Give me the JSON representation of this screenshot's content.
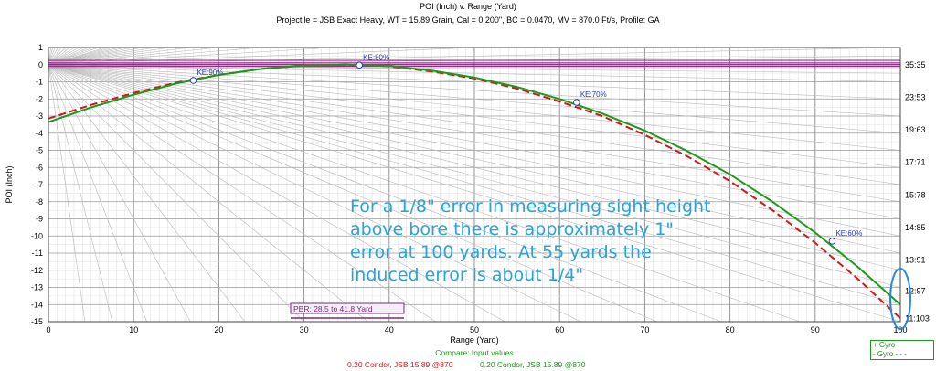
{
  "chart_data": {
    "type": "line",
    "title": "POI (Inch) v. Range (Yard)",
    "subtitle": "Projectile = JSB Exact Heavy, WT = 15.89 Grain, Cal = 0.200\", BC = 0.0470, MV = 870.0 Ft/s, Profile: GA",
    "xlabel": "Range (Yard)",
    "ylabel": "POI (Inch)",
    "xlim": [
      0,
      100
    ],
    "ylim": [
      -15,
      1
    ],
    "xticks": [
      "0",
      "10",
      "20",
      "30",
      "40",
      "50",
      "60",
      "70",
      "80",
      "90",
      "100"
    ],
    "yticks": [
      "1",
      "0",
      "-1",
      "-2",
      "-3",
      "-4",
      "-5",
      "-6",
      "-7",
      "-8",
      "-9",
      "-10",
      "-11",
      "-12",
      "-13",
      "-14",
      "-15"
    ],
    "right_ticks": [
      {
        "label": "35:35",
        "y": 0
      },
      {
        "label": "23:53",
        "y": -1.9
      },
      {
        "label": "19:63",
        "y": -3.8
      },
      {
        "label": "17:71",
        "y": -5.7
      },
      {
        "label": "15:78",
        "y": -7.6
      },
      {
        "label": "14:85",
        "y": -9.5
      },
      {
        "label": "13:91",
        "y": -11.4
      },
      {
        "label": "12:97",
        "y": -13.2
      },
      {
        "label": "11:103",
        "y": -14.8
      }
    ],
    "grid": true,
    "series": [
      {
        "name": "0.20 Condor, JSB 15.89 @870",
        "color": "#cc1a1a",
        "dash": "8,4",
        "x": [
          0,
          5,
          10,
          15,
          20,
          25,
          30,
          35,
          40,
          45,
          50,
          55,
          60,
          65,
          70,
          75,
          80,
          85,
          90,
          95,
          100
        ],
        "y": [
          -3.15,
          -2.35,
          -1.65,
          -1.05,
          -0.6,
          -0.25,
          -0.05,
          0,
          -0.1,
          -0.4,
          -0.8,
          -1.4,
          -2.15,
          -3.0,
          -4.1,
          -5.35,
          -6.8,
          -8.5,
          -10.4,
          -12.5,
          -14.8
        ]
      },
      {
        "name": "0.20 Condor, JSB 15.89 @870",
        "color": "#1a9a1a",
        "dash": "",
        "x": [
          0,
          5,
          10,
          15,
          20,
          25,
          30,
          35,
          40,
          45,
          50,
          55,
          60,
          65,
          70,
          75,
          80,
          85,
          90,
          95,
          100
        ],
        "y": [
          -3.35,
          -2.5,
          -1.75,
          -1.1,
          -0.6,
          -0.25,
          -0.05,
          0,
          -0.08,
          -0.35,
          -0.75,
          -1.3,
          -2.0,
          -2.85,
          -3.85,
          -5.05,
          -6.4,
          -8.0,
          -9.8,
          -11.8,
          -14.0
        ]
      }
    ],
    "ke_markers": [
      {
        "label": "KE:90%",
        "x": 17,
        "y": -0.92
      },
      {
        "label": "KE:80%",
        "x": 36.5,
        "y": -0.03
      },
      {
        "label": "KE:70%",
        "x": 62,
        "y": -2.2
      },
      {
        "label": "KE:60%",
        "x": 92,
        "y": -10.3
      }
    ],
    "pbr_label": "PBR: 28.5 to 41.8 Yard",
    "compare_label": "Compare: Input values",
    "legend": {
      "placement": "bottom-right",
      "entries": [
        "+ Gyro",
        "- Gyro - - -"
      ]
    }
  },
  "annotation": {
    "lines": [
      "For a 1/8\" error in measuring sight height",
      "above bore there is approximately 1\"",
      "error at 100 yards.   At  55 yards the",
      "induced error is about 1/4\""
    ],
    "color": "#2aa3d8"
  }
}
